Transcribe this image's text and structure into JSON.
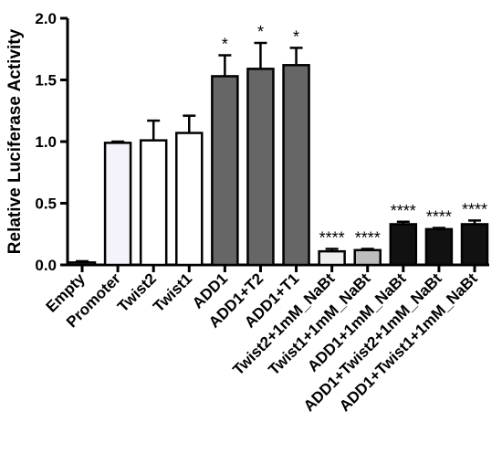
{
  "chart_data": {
    "type": "bar",
    "ylabel": "Relative Luciferase Activity",
    "ylim": [
      0,
      2.0
    ],
    "yticks": [
      "0.0",
      "0.5",
      "1.0",
      "1.5",
      "2.0"
    ],
    "categories": [
      "Empty",
      "Promoter",
      "Twist2",
      "Twist1",
      "ADD1",
      "ADD1+T2",
      "ADD1+T1",
      "Twist2+1mM_NaBt",
      "Twist1+1mM_NaBt",
      "ADD1+1mM_NaBt",
      "ADD1+Twist2+1mM_NaBt",
      "ADD1+Twist1+1mM_NaBt"
    ],
    "values": [
      0.02,
      0.99,
      1.01,
      1.07,
      1.53,
      1.59,
      1.62,
      0.11,
      0.12,
      0.33,
      0.29,
      0.33
    ],
    "errors": [
      0.01,
      0.01,
      0.16,
      0.14,
      0.17,
      0.21,
      0.14,
      0.02,
      0.01,
      0.02,
      0.01,
      0.03
    ],
    "significance": [
      "",
      "",
      "",
      "",
      "*",
      "*",
      "*",
      "****",
      "****",
      "****",
      "****",
      "****"
    ],
    "bar_colors": [
      "#555555",
      "#f4f2fb",
      "#ffffff",
      "#ffffff",
      "#666666",
      "#666666",
      "#666666",
      "#eeeeee",
      "#bdbdbd",
      "#111111",
      "#111111",
      "#111111"
    ]
  }
}
